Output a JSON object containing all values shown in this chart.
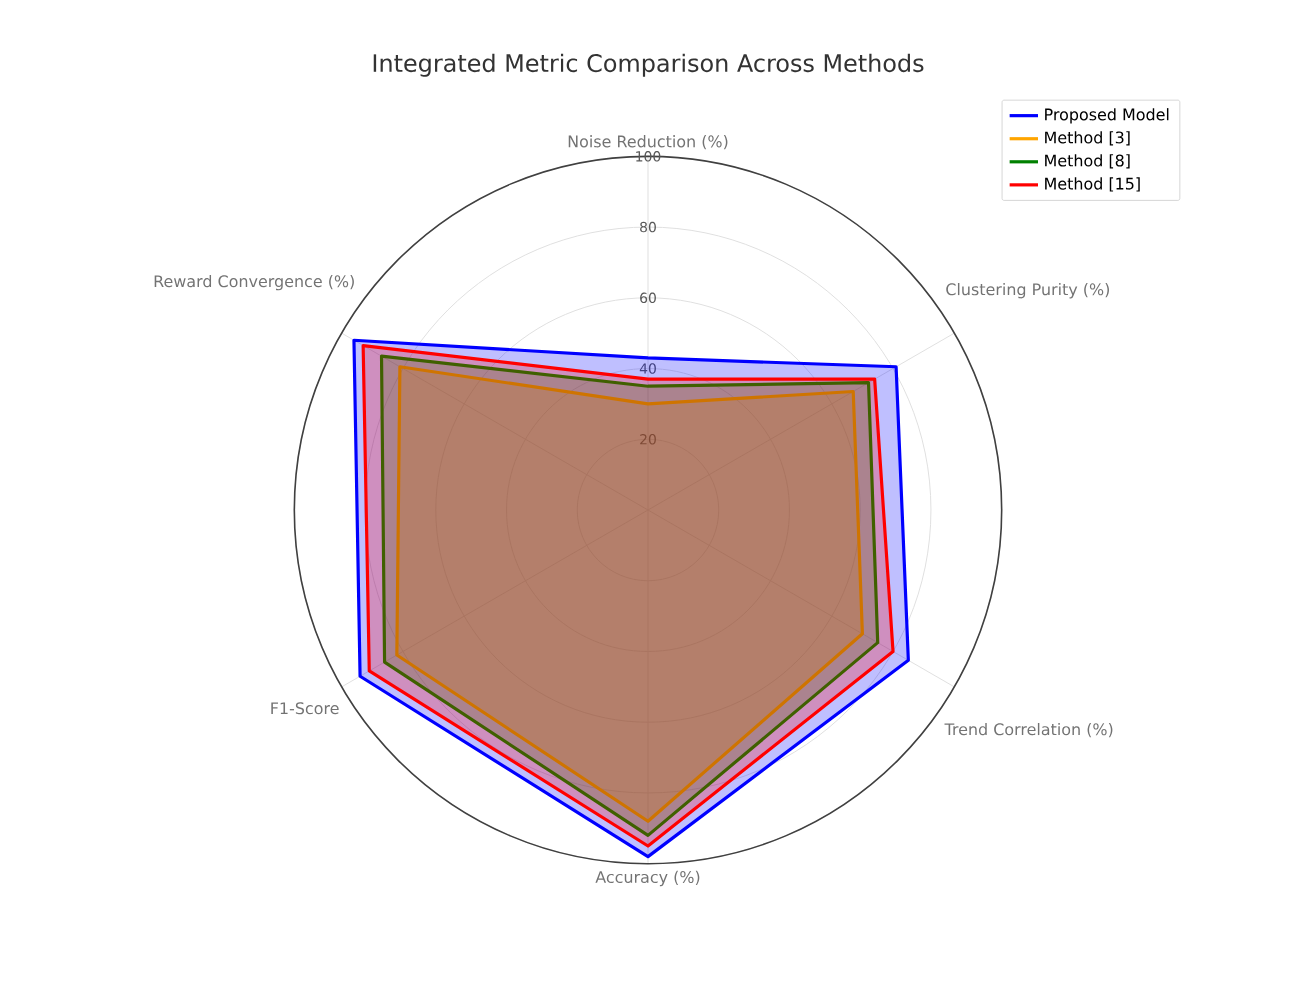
{
  "chart_data": {
    "type": "radar",
    "title": "Integrated Metric Comparison Across Methods",
    "categories": [
      "Noise Reduction (%)",
      "Clustering Purity (%)",
      "Trend Correlation (%)",
      "Accuracy (%)",
      "F1-Score",
      "Reward Convergence (%)"
    ],
    "series": [
      {
        "name": "Proposed Model",
        "color": "#0000ff",
        "values": [
          43,
          81,
          85,
          98,
          94,
          96
        ]
      },
      {
        "name": "Method [3]",
        "color": "#ffa500",
        "values": [
          30,
          67,
          70,
          88,
          82,
          81
        ]
      },
      {
        "name": "Method [8]",
        "color": "#008000",
        "values": [
          35,
          72,
          75,
          92,
          86,
          87
        ]
      },
      {
        "name": "Method [15]",
        "color": "#ff0000",
        "values": [
          37,
          74,
          80,
          95,
          91,
          93
        ]
      }
    ],
    "ylim": [
      0,
      100
    ],
    "yticks": [
      20,
      40,
      60,
      80,
      100
    ],
    "grid": true,
    "legend": "top right"
  }
}
